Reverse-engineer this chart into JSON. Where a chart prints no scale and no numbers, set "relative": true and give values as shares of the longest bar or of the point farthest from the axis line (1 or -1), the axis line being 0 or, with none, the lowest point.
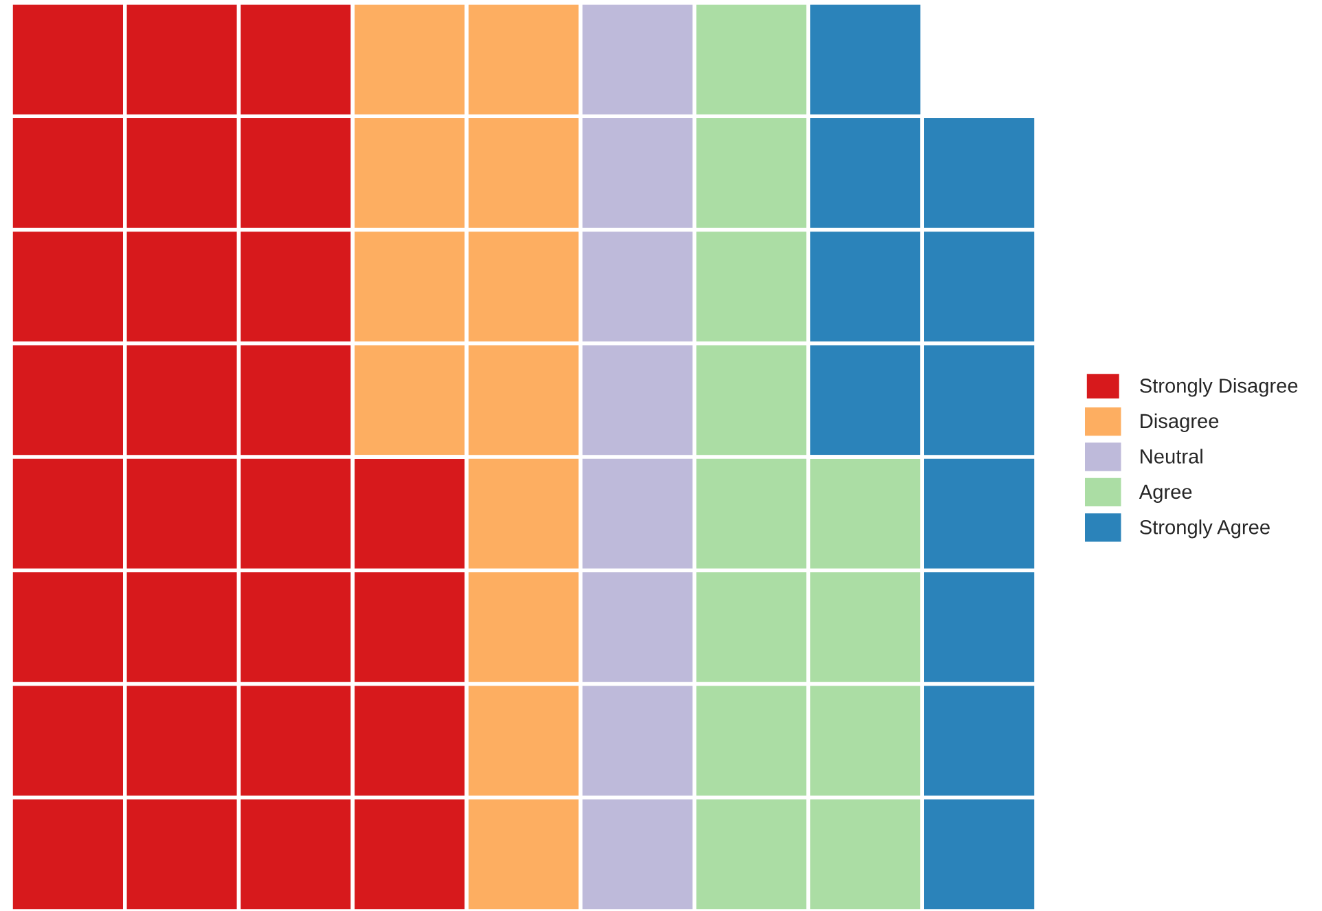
{
  "chart_data": {
    "type": "bar",
    "stacked": true,
    "relative": true,
    "categories": [
      null,
      null,
      null,
      null,
      null,
      null,
      null,
      null,
      null
    ],
    "series": [
      {
        "name": "Strongly Disagree",
        "color": "#d7191c",
        "values": [
          1,
          1,
          1,
          0.5,
          0,
          0,
          0,
          0,
          0
        ]
      },
      {
        "name": "Disagree",
        "color": "#fdae61",
        "values": [
          0,
          0,
          0,
          0.5,
          1,
          0,
          0,
          0,
          0
        ]
      },
      {
        "name": "Neutral",
        "color": "#bebada",
        "values": [
          0,
          0,
          0,
          0,
          0,
          1,
          0,
          0,
          0
        ]
      },
      {
        "name": "Agree",
        "color": "#abdda4",
        "values": [
          0,
          0,
          0,
          0,
          0,
          0,
          1,
          0.5,
          0
        ]
      },
      {
        "name": "Strongly Agree",
        "color": "#2b83ba",
        "values": [
          0,
          0,
          0,
          0,
          0,
          0,
          0,
          0.5,
          0.875
        ]
      }
    ],
    "grid": "y",
    "legend": "right"
  }
}
